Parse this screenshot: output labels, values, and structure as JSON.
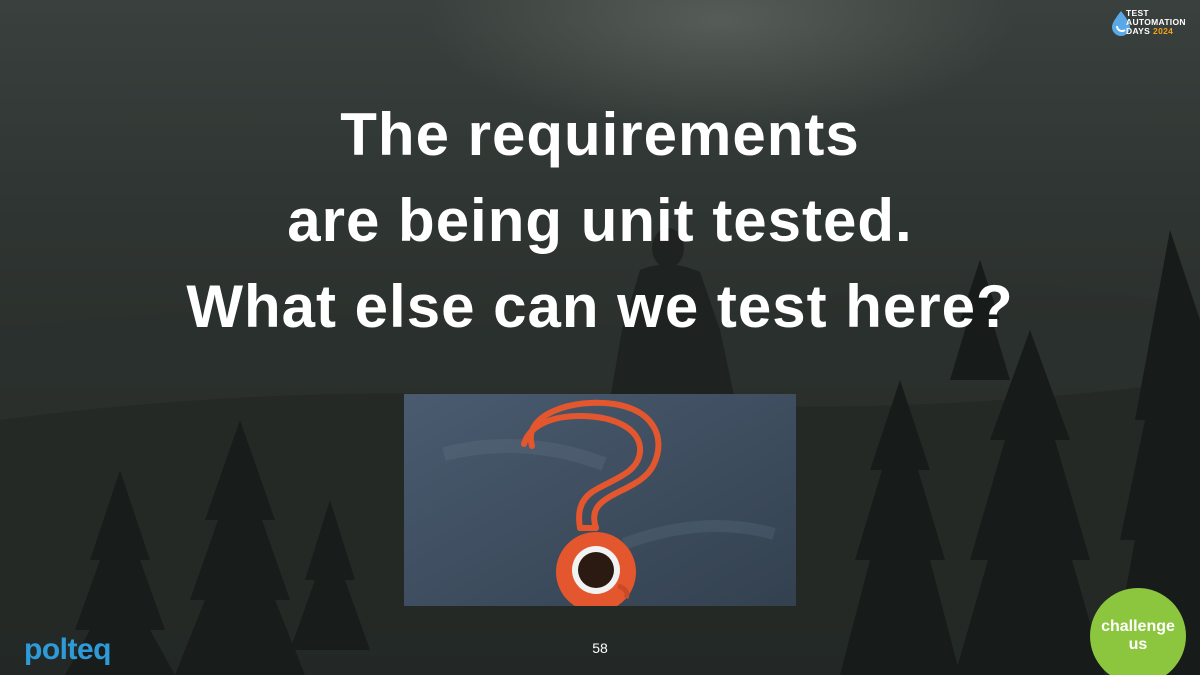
{
  "slide": {
    "headline_lines": [
      "The requirements",
      "are being unit tested.",
      "What else can we test here?"
    ],
    "page_number": "58"
  },
  "logos": {
    "event": {
      "line1": "TEST",
      "line2": "AUTOMATION",
      "line3": "DAYS",
      "year": "2024"
    },
    "company": "polteq",
    "badge": {
      "line1": "challenge",
      "line2": "us"
    }
  },
  "image": {
    "description_icons": [
      "question-mark-icon",
      "coffee-cup-icon"
    ]
  },
  "colors": {
    "headline": "#ffffff",
    "chalkboard": "#3a4a5e",
    "chalk_orange": "#e4572e",
    "polteq_blue": "#2e9ad8",
    "badge_green": "#8cc63f",
    "year_orange": "#f3a21b"
  }
}
